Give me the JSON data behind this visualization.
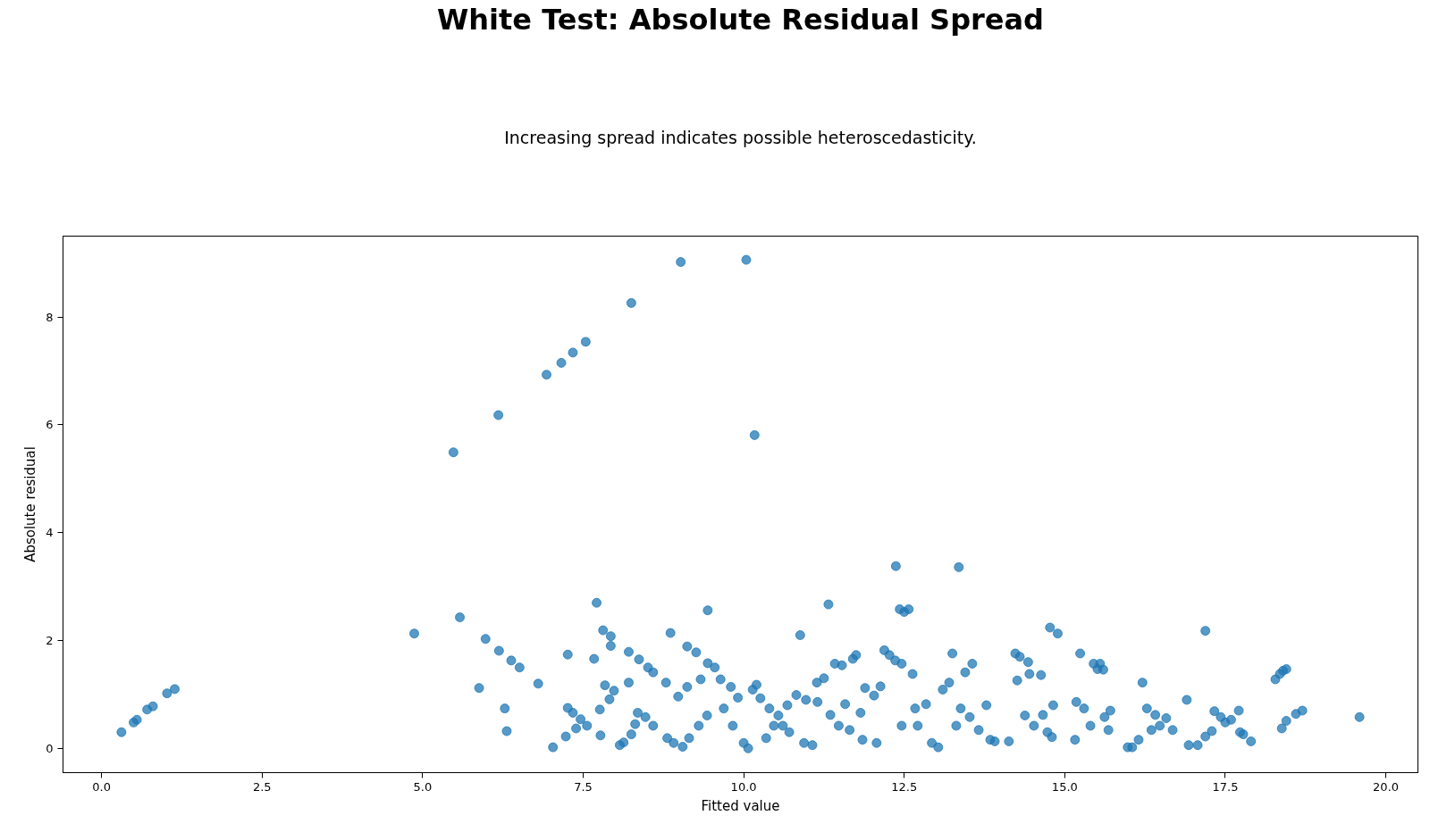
{
  "chart_data": {
    "type": "scatter",
    "title": "White Test: Absolute Residual Spread",
    "subtitle": "Increasing spread indicates possible heteroscedasticity.",
    "xlabel": "Fitted value",
    "ylabel": "Absolute residual",
    "marker": "circle",
    "grid": false,
    "xlim": [
      -0.6,
      20.5
    ],
    "ylim": [
      -0.45,
      9.5
    ],
    "xticks": [
      {
        "value": 0,
        "label": "0.0"
      },
      {
        "value": 2.5,
        "label": "2.5"
      },
      {
        "value": 5,
        "label": "5.0"
      },
      {
        "value": 7.5,
        "label": "7.5"
      },
      {
        "value": 10,
        "label": "10.0"
      },
      {
        "value": 12.5,
        "label": "12.5"
      },
      {
        "value": 15,
        "label": "15.0"
      },
      {
        "value": 17.5,
        "label": "17.5"
      },
      {
        "value": 20,
        "label": "20.0"
      }
    ],
    "yticks": [
      0,
      2,
      4,
      6,
      8
    ],
    "series": [
      {
        "color": "#1f77b4",
        "x": [
          0.31,
          0.5,
          0.55,
          0.71,
          0.8,
          1.02,
          1.14,
          4.87,
          5.48,
          5.58,
          5.88,
          5.98,
          6.18,
          6.19,
          6.28,
          6.31,
          6.38,
          6.51,
          6.8,
          6.93,
          7.03,
          7.16,
          7.23,
          7.26,
          7.26,
          7.34,
          7.34,
          7.39,
          7.46,
          7.54,
          7.56,
          7.67,
          7.71,
          7.76,
          7.77,
          7.81,
          7.84,
          7.93,
          7.93,
          7.91,
          7.98,
          8.07,
          8.13,
          8.21,
          8.21,
          8.25,
          8.25,
          8.31,
          8.35,
          8.37,
          8.47,
          8.51,
          8.59,
          8.59,
          8.79,
          8.86,
          8.81,
          8.91,
          9.02,
          9.05,
          8.98,
          9.12,
          9.12,
          9.15,
          9.26,
          9.3,
          9.33,
          9.44,
          9.44,
          9.43,
          9.55,
          9.64,
          9.69,
          9.8,
          9.83,
          9.91,
          10.0,
          10.04,
          10.07,
          10.14,
          10.17,
          10.2,
          10.26,
          10.35,
          10.4,
          10.47,
          10.54,
          10.61,
          10.68,
          10.71,
          10.82,
          10.88,
          10.94,
          10.97,
          11.07,
          11.14,
          11.15,
          11.25,
          11.32,
          11.35,
          11.42,
          11.48,
          11.53,
          11.58,
          11.65,
          11.7,
          11.75,
          11.82,
          11.85,
          11.89,
          12.03,
          12.07,
          12.13,
          12.19,
          12.27,
          12.36,
          12.37,
          12.43,
          12.46,
          12.46,
          12.5,
          12.57,
          12.63,
          12.67,
          12.71,
          12.84,
          12.93,
          13.03,
          13.1,
          13.2,
          13.25,
          13.31,
          13.35,
          13.38,
          13.45,
          13.52,
          13.56,
          13.66,
          13.78,
          13.84,
          13.91,
          14.13,
          14.23,
          14.26,
          14.3,
          14.38,
          14.43,
          14.45,
          14.52,
          14.63,
          14.66,
          14.73,
          14.77,
          14.8,
          14.82,
          14.89,
          15.16,
          15.18,
          15.24,
          15.3,
          15.4,
          15.45,
          15.51,
          15.55,
          15.6,
          15.62,
          15.68,
          15.71,
          15.98,
          16.05,
          16.15,
          16.21,
          16.28,
          16.35,
          16.41,
          16.48,
          16.58,
          16.68,
          16.9,
          16.93,
          17.07,
          17.19,
          17.19,
          17.29,
          17.33,
          17.43,
          17.5,
          17.59,
          17.71,
          17.73,
          17.78,
          17.9,
          18.28,
          18.35,
          18.4,
          18.45,
          18.38,
          18.45,
          18.6,
          18.7,
          19.59
        ],
        "values": [
          0.3,
          0.48,
          0.53,
          0.72,
          0.78,
          1.02,
          1.1,
          2.13,
          5.49,
          2.43,
          1.12,
          2.03,
          6.18,
          1.81,
          0.74,
          0.32,
          1.63,
          1.5,
          1.2,
          6.93,
          0.02,
          7.15,
          0.22,
          1.74,
          0.75,
          7.34,
          0.66,
          0.37,
          0.54,
          7.54,
          0.42,
          1.66,
          2.7,
          0.72,
          0.24,
          2.19,
          1.17,
          2.08,
          1.9,
          0.91,
          1.07,
          0.06,
          0.11,
          1.22,
          1.79,
          8.26,
          0.26,
          0.45,
          0.66,
          1.65,
          0.58,
          1.5,
          1.41,
          0.42,
          1.22,
          2.14,
          0.19,
          0.1,
          9.02,
          0.03,
          0.96,
          1.89,
          1.14,
          0.19,
          1.78,
          0.42,
          1.28,
          2.56,
          1.58,
          0.61,
          1.5,
          1.28,
          0.74,
          1.14,
          0.42,
          0.94,
          0.1,
          9.06,
          0.0,
          1.09,
          5.81,
          1.18,
          0.93,
          0.19,
          0.74,
          0.42,
          0.61,
          0.42,
          0.8,
          0.3,
          0.99,
          2.1,
          0.1,
          0.9,
          0.06,
          1.22,
          0.86,
          1.3,
          2.67,
          0.62,
          1.57,
          0.42,
          1.54,
          0.82,
          0.34,
          1.66,
          1.73,
          0.66,
          0.16,
          1.12,
          0.98,
          0.1,
          1.15,
          1.82,
          1.73,
          1.63,
          3.38,
          2.58,
          1.57,
          0.42,
          2.53,
          2.58,
          1.38,
          0.74,
          0.42,
          0.82,
          0.1,
          0.02,
          1.09,
          1.22,
          1.76,
          0.42,
          3.36,
          0.74,
          1.41,
          0.58,
          1.57,
          0.34,
          0.8,
          0.16,
          0.13,
          0.13,
          1.76,
          1.26,
          1.7,
          0.61,
          1.6,
          1.38,
          0.42,
          1.36,
          0.62,
          0.3,
          2.24,
          0.21,
          0.8,
          2.13,
          0.16,
          0.86,
          1.76,
          0.74,
          0.42,
          1.57,
          1.47,
          1.57,
          1.46,
          0.58,
          0.34,
          0.7,
          0.02,
          0.02,
          0.16,
          1.22,
          0.74,
          0.34,
          0.62,
          0.42,
          0.56,
          0.34,
          0.9,
          0.06,
          0.06,
          2.18,
          0.22,
          0.32,
          0.69,
          0.58,
          0.48,
          0.53,
          0.7,
          0.3,
          0.26,
          0.13,
          1.28,
          1.38,
          1.44,
          1.47,
          0.37,
          0.51,
          0.64,
          0.7,
          0.58
        ]
      }
    ]
  }
}
